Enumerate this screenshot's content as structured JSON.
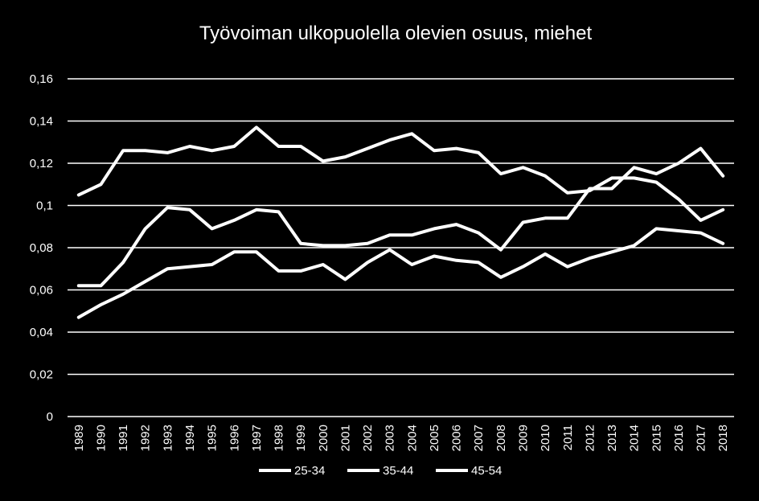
{
  "chart_data": {
    "type": "line",
    "title": "Työvoiman ulkopuolella olevien osuus, miehet",
    "xlabel": "",
    "ylabel": "",
    "ylim": [
      0,
      0.16
    ],
    "yticks": [
      "0",
      "0,02",
      "0,04",
      "0,06",
      "0,08",
      "0,1",
      "0,12",
      "0,14",
      "0,16"
    ],
    "grid": true,
    "legend_position": "bottom",
    "x": [
      "1989",
      "1990",
      "1991",
      "1992",
      "1993",
      "1994",
      "1995",
      "1996",
      "1997",
      "1998",
      "1999",
      "2000",
      "2001",
      "2002",
      "2003",
      "2004",
      "2005",
      "2006",
      "2007",
      "2008",
      "2009",
      "2010",
      "2011",
      "2012",
      "2013",
      "2014",
      "2015",
      "2016",
      "2017",
      "2018"
    ],
    "series": [
      {
        "name": "25-34",
        "color": "#ffffff",
        "values": [
          0.047,
          0.053,
          0.058,
          0.064,
          0.07,
          0.071,
          0.072,
          0.078,
          0.078,
          0.069,
          0.069,
          0.072,
          0.065,
          0.073,
          0.079,
          0.072,
          0.076,
          0.074,
          0.073,
          0.066,
          0.071,
          0.077,
          0.071,
          0.075,
          0.078,
          0.081,
          0.089,
          0.088,
          0.087,
          0.082
        ]
      },
      {
        "name": "35-44",
        "color": "#ffffff",
        "values": [
          0.062,
          0.062,
          0.073,
          0.089,
          0.099,
          0.098,
          0.089,
          0.093,
          0.098,
          0.097,
          0.082,
          0.081,
          0.081,
          0.082,
          0.086,
          0.086,
          0.089,
          0.091,
          0.087,
          0.079,
          0.092,
          0.094,
          0.094,
          0.108,
          0.108,
          0.118,
          0.115,
          0.12,
          0.127,
          0.114
        ]
      },
      {
        "name": "45-54",
        "color": "#ffffff",
        "values": [
          0.105,
          0.11,
          0.126,
          0.126,
          0.125,
          0.128,
          0.126,
          0.128,
          0.137,
          0.128,
          0.128,
          0.121,
          0.123,
          0.127,
          0.131,
          0.134,
          0.126,
          0.127,
          0.125,
          0.115,
          0.118,
          0.114,
          0.106,
          0.107,
          0.113,
          0.113,
          0.111,
          0.103,
          0.093,
          0.098
        ]
      }
    ]
  }
}
